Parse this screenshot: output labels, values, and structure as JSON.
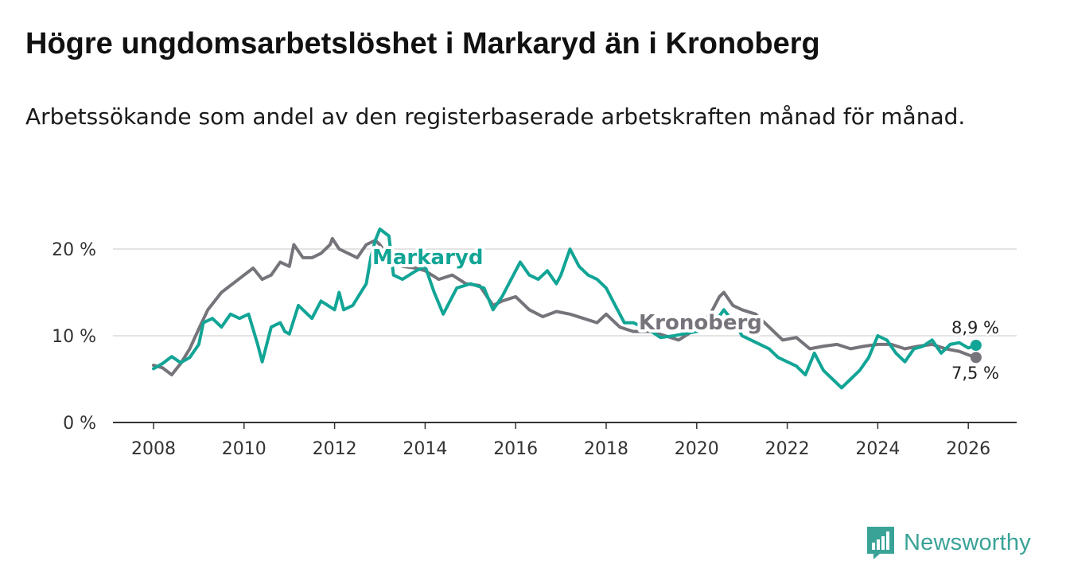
{
  "title": "Högre ungdomsarbetslöshet i Markaryd än i Kronoberg",
  "subtitle": "Arbetssökande som andel av den registerbaserade arbetskraften månad för månad.",
  "brand": {
    "label": "Newsworthy",
    "icon": "newsworthy-logo-icon"
  },
  "colors": {
    "markaryd": "#12a596",
    "kronoberg": "#76737a",
    "grid": "#dcdcdc",
    "axis": "#333333"
  },
  "chart_data": {
    "type": "line",
    "title": "Högre ungdomsarbetslöshet i Markaryd än i Kronoberg",
    "xlabel": "",
    "ylabel": "",
    "xlim": [
      2007.5,
      2027.0
    ],
    "ylim": [
      0,
      22
    ],
    "x_ticks": [
      2008,
      2010,
      2012,
      2014,
      2016,
      2018,
      2020,
      2022,
      2024,
      2026
    ],
    "x_tick_labels": [
      "2008",
      "2010",
      "2012",
      "2014",
      "2016",
      "2018",
      "2020",
      "2022",
      "2024",
      "2026"
    ],
    "y_ticks": [
      0,
      10,
      20
    ],
    "y_tick_labels": [
      "0 %",
      "10 %",
      "20 %"
    ],
    "grid": true,
    "series": [
      {
        "name": "Markaryd",
        "label": "Markaryd",
        "end_label": "8,9 %",
        "x": [
          2008.0,
          2008.2,
          2008.4,
          2008.6,
          2008.8,
          2009.0,
          2009.1,
          2009.3,
          2009.5,
          2009.7,
          2009.9,
          2010.1,
          2010.3,
          2010.4,
          2010.6,
          2010.8,
          2010.9,
          2011.0,
          2011.2,
          2011.5,
          2011.7,
          2012.0,
          2012.1,
          2012.2,
          2012.4,
          2012.7,
          2012.8,
          2012.9,
          2013.0,
          2013.2,
          2013.3,
          2013.5,
          2013.8,
          2014.0,
          2014.2,
          2014.4,
          2014.6,
          2014.7,
          2015.0,
          2015.3,
          2015.5,
          2015.7,
          2016.0,
          2016.1,
          2016.3,
          2016.5,
          2016.7,
          2016.9,
          2017.0,
          2017.2,
          2017.4,
          2017.6,
          2017.8,
          2018.0,
          2018.2,
          2018.4,
          2018.6,
          2018.8,
          2019.0,
          2019.2,
          2019.5,
          2019.8,
          2020.0,
          2020.3,
          2020.6,
          2020.9,
          2021.0,
          2021.2,
          2021.4,
          2021.6,
          2021.8,
          2022.0,
          2022.2,
          2022.4,
          2022.6,
          2022.8,
          2023.0,
          2023.2,
          2023.4,
          2023.6,
          2023.8,
          2024.0,
          2024.2,
          2024.4,
          2024.6,
          2024.8,
          2025.0,
          2025.2,
          2025.4,
          2025.6,
          2025.8,
          2026.0,
          2026.17
        ],
        "y": [
          6.2,
          6.8,
          7.6,
          6.9,
          7.5,
          9.0,
          11.5,
          12.0,
          11.0,
          12.5,
          12.0,
          12.5,
          9.0,
          7.0,
          11.0,
          11.5,
          10.5,
          10.2,
          13.5,
          12.0,
          14.0,
          13.0,
          15.0,
          13.0,
          13.5,
          16.0,
          19.0,
          21.0,
          22.3,
          21.5,
          17.0,
          16.5,
          17.5,
          18.0,
          15.0,
          12.5,
          14.5,
          15.5,
          16.0,
          15.5,
          13.0,
          14.5,
          17.5,
          18.5,
          17.0,
          16.5,
          17.5,
          16.0,
          17.0,
          20.0,
          18.0,
          17.0,
          16.5,
          15.5,
          13.5,
          11.5,
          11.5,
          11.0,
          10.5,
          9.8,
          10.0,
          10.3,
          10.5,
          10.8,
          13.0,
          11.0,
          10.0,
          9.5,
          9.0,
          8.5,
          7.5,
          7.0,
          6.5,
          5.5,
          8.0,
          6.0,
          5.0,
          4.0,
          5.0,
          6.0,
          7.5,
          10.0,
          9.5,
          8.0,
          7.0,
          8.5,
          8.8,
          9.5,
          8.0,
          9.0,
          9.2,
          8.6,
          8.9
        ]
      },
      {
        "name": "Kronoberg",
        "label": "Kronoberg",
        "end_label": "7,5 %",
        "x": [
          2008.0,
          2008.2,
          2008.4,
          2008.6,
          2008.8,
          2009.0,
          2009.2,
          2009.5,
          2009.7,
          2010.0,
          2010.2,
          2010.4,
          2010.6,
          2010.8,
          2011.0,
          2011.1,
          2011.3,
          2011.5,
          2011.7,
          2011.9,
          2011.95,
          2012.1,
          2012.3,
          2012.5,
          2012.7,
          2012.9,
          2013.0,
          2013.2,
          2013.5,
          2013.8,
          2014.0,
          2014.3,
          2014.6,
          2014.9,
          2015.2,
          2015.5,
          2015.7,
          2016.0,
          2016.3,
          2016.6,
          2016.9,
          2017.2,
          2017.5,
          2017.8,
          2018.0,
          2018.3,
          2018.6,
          2018.8,
          2019.0,
          2019.3,
          2019.6,
          2019.9,
          2020.1,
          2020.3,
          2020.5,
          2020.6,
          2020.8,
          2021.0,
          2021.3,
          2021.6,
          2021.9,
          2022.2,
          2022.5,
          2022.8,
          2023.1,
          2023.4,
          2023.7,
          2024.0,
          2024.3,
          2024.6,
          2024.9,
          2025.2,
          2025.5,
          2025.8,
          2026.0,
          2026.17
        ],
        "y": [
          6.6,
          6.3,
          5.5,
          6.8,
          8.5,
          10.8,
          13.0,
          15.0,
          15.8,
          17.0,
          17.8,
          16.5,
          17.0,
          18.5,
          18.0,
          20.5,
          19.0,
          19.0,
          19.5,
          20.5,
          21.2,
          20.0,
          19.5,
          19.0,
          20.5,
          21.0,
          20.5,
          19.0,
          18.0,
          17.8,
          17.5,
          16.5,
          17.0,
          16.0,
          15.8,
          13.5,
          14.0,
          14.5,
          13.0,
          12.2,
          12.8,
          12.5,
          12.0,
          11.5,
          12.5,
          11.0,
          10.5,
          10.5,
          10.5,
          10.0,
          9.5,
          10.5,
          11.5,
          12.5,
          14.5,
          15.0,
          13.5,
          13.0,
          12.5,
          11.0,
          9.5,
          9.8,
          8.5,
          8.8,
          9.0,
          8.5,
          8.8,
          9.0,
          9.0,
          8.5,
          8.8,
          9.0,
          8.5,
          8.2,
          7.8,
          7.5
        ]
      }
    ]
  }
}
